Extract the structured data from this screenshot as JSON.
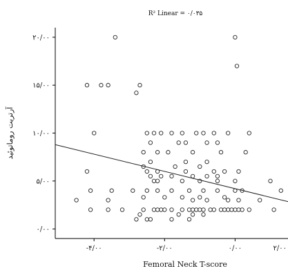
{
  "chart_data": {
    "type": "scatter",
    "title": "R² Linear = ۰/۰۳۵",
    "xlabel": "Femoral Neck T-score",
    "ylabel": "آرتریت روماتوئید",
    "xlim": [
      -5.1,
      1.5
    ],
    "ylim": [
      -1,
      21
    ],
    "x_ticks": [
      -4,
      -2,
      0,
      2
    ],
    "x_tick_labels": [
      "-۴/۰۰",
      "-۲/۰۰",
      "۰/۰۰",
      "۲/۰۰"
    ],
    "y_ticks": [
      0,
      5,
      10,
      15,
      20
    ],
    "y_tick_labels": [
      "۰/۰۰",
      "۵/۰۰",
      "۱۰/۰۰",
      "۱۵/۰۰",
      "۲۰/۰۰"
    ],
    "grid": false,
    "fit_line": {
      "slope": -0.9,
      "intercept": 4.2,
      "r_squared": 0.035
    },
    "points": [
      [
        -3.4,
        20
      ],
      [
        0,
        20
      ],
      [
        0.05,
        17
      ],
      [
        -4.2,
        15
      ],
      [
        -3.8,
        15
      ],
      [
        -3.6,
        15
      ],
      [
        -2.7,
        15
      ],
      [
        -2.8,
        14.2
      ],
      [
        -4,
        10
      ],
      [
        -2.5,
        10
      ],
      [
        -2.3,
        10
      ],
      [
        -2.1,
        10
      ],
      [
        -1.8,
        10
      ],
      [
        -1.5,
        10
      ],
      [
        -1.1,
        10
      ],
      [
        -0.9,
        10
      ],
      [
        -0.6,
        10
      ],
      [
        -0.2,
        10
      ],
      [
        0.4,
        10
      ],
      [
        -2.4,
        9
      ],
      [
        -1.6,
        9
      ],
      [
        -1.4,
        9
      ],
      [
        -0.8,
        9
      ],
      [
        -0.5,
        9
      ],
      [
        -2.6,
        8
      ],
      [
        -2.2,
        8
      ],
      [
        -1.9,
        8
      ],
      [
        -1.2,
        8
      ],
      [
        -0.4,
        8
      ],
      [
        0.3,
        8
      ],
      [
        -2.4,
        7
      ],
      [
        -1.4,
        7
      ],
      [
        -0.8,
        7
      ],
      [
        -2.6,
        6.5
      ],
      [
        -1.7,
        6.5
      ],
      [
        -1,
        6.5
      ],
      [
        -4.2,
        6
      ],
      [
        -2.2,
        6
      ],
      [
        -2.5,
        6
      ],
      [
        -1.4,
        6
      ],
      [
        -0.6,
        6
      ],
      [
        -0.3,
        6
      ],
      [
        0.1,
        6
      ],
      [
        -2.4,
        5.5
      ],
      [
        -2.1,
        5.5
      ],
      [
        -1.8,
        5.5
      ],
      [
        -1.2,
        5.5
      ],
      [
        -0.8,
        5.5
      ],
      [
        -0.5,
        5.5
      ],
      [
        -2.2,
        5
      ],
      [
        -2.3,
        5
      ],
      [
        -1.5,
        5
      ],
      [
        -1,
        5
      ],
      [
        -0.5,
        5
      ],
      [
        0,
        5
      ],
      [
        1,
        5
      ],
      [
        -4.1,
        4
      ],
      [
        -3.5,
        4
      ],
      [
        -2.9,
        4
      ],
      [
        -2.5,
        4
      ],
      [
        -2.2,
        4
      ],
      [
        -1.8,
        4
      ],
      [
        -1.3,
        4
      ],
      [
        -0.9,
        4
      ],
      [
        -0.5,
        4
      ],
      [
        0,
        4
      ],
      [
        0.2,
        4
      ],
      [
        1.3,
        4
      ],
      [
        -2.6,
        3.3
      ],
      [
        -2,
        3.3
      ],
      [
        -1.5,
        3.3
      ],
      [
        -1,
        3.3
      ],
      [
        -0.3,
        3.3
      ],
      [
        -4.5,
        3
      ],
      [
        -3.6,
        3
      ],
      [
        -1.2,
        3
      ],
      [
        -0.8,
        3
      ],
      [
        -0.2,
        3
      ],
      [
        0.1,
        3
      ],
      [
        0.7,
        3
      ],
      [
        -4.1,
        2
      ],
      [
        -3.6,
        2
      ],
      [
        -3.2,
        2
      ],
      [
        -2.6,
        2
      ],
      [
        -2.3,
        2
      ],
      [
        -2.2,
        2
      ],
      [
        -2.1,
        2
      ],
      [
        -2,
        2
      ],
      [
        -1.8,
        2
      ],
      [
        -1.5,
        2
      ],
      [
        -1.3,
        2
      ],
      [
        -1.2,
        2
      ],
      [
        -1.1,
        2
      ],
      [
        -1,
        2
      ],
      [
        -0.9,
        2
      ],
      [
        -0.7,
        2
      ],
      [
        -0.6,
        2
      ],
      [
        -0.4,
        2
      ],
      [
        -0.3,
        2
      ],
      [
        -0.2,
        2
      ],
      [
        -0.1,
        2
      ],
      [
        0,
        2
      ],
      [
        0.1,
        2
      ],
      [
        0.2,
        2
      ],
      [
        0.4,
        2
      ],
      [
        1.1,
        2
      ],
      [
        1.8,
        2
      ],
      [
        1.9,
        2
      ],
      [
        -2.7,
        1.5
      ],
      [
        -1.6,
        1.5
      ],
      [
        -1.2,
        1.5
      ],
      [
        -0.9,
        1.5
      ],
      [
        -2.8,
        1
      ],
      [
        -2.5,
        1
      ],
      [
        -2.4,
        1
      ],
      [
        -1.8,
        1
      ],
      [
        -1.3,
        1
      ]
    ]
  }
}
